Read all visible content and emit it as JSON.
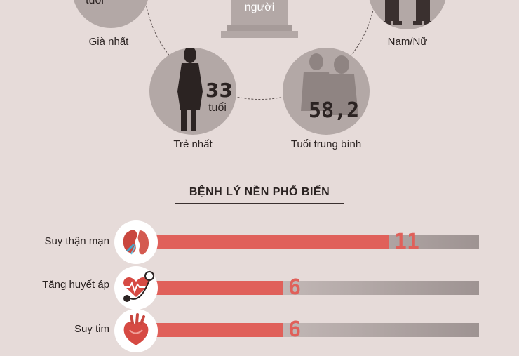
{
  "stats": {
    "oldest": {
      "unit": "tuổi",
      "label": "Già nhất"
    },
    "youngest": {
      "value": "33",
      "unit": "tuổi",
      "label": "Trẻ nhất"
    },
    "average": {
      "value": "58,2",
      "label": "Tuổi trung bình"
    },
    "total": {
      "unit": "người"
    },
    "gender": {
      "label": "Nam/Nữ"
    }
  },
  "conditions": {
    "title": "BỆNH LÝ NỀN PHỔ BIẾN",
    "max": 11,
    "items": [
      {
        "label": "Suy thận mạn",
        "value": "11",
        "count": 11,
        "icon": "kidney-icon"
      },
      {
        "label": "Tăng huyết áp",
        "value": "6",
        "count": 6,
        "icon": "blood-pressure-icon"
      },
      {
        "label": "Suy tim",
        "value": "6",
        "count": 6,
        "icon": "heart-icon"
      }
    ]
  },
  "colors": {
    "accent": "#e0605a",
    "circle": "#b3a8a6",
    "background": "#e6dbd9"
  }
}
